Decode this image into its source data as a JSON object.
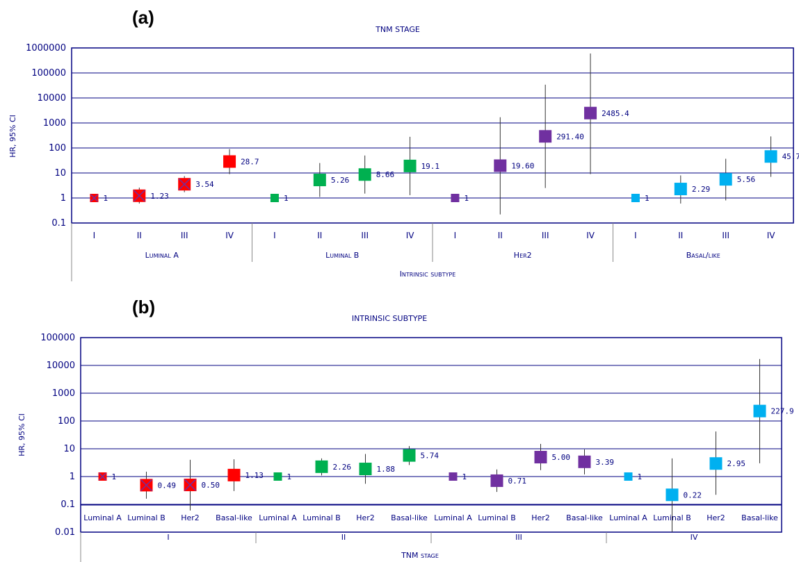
{
  "chart_data": [
    {
      "type": "scatter",
      "panel": "(a)",
      "title": "TNM STAGE",
      "ylabel": "HR, 95% CI",
      "xlabel": "Intrinsic subtype",
      "yscale": "log",
      "ylim": [
        0.1,
        1000000
      ],
      "yticks": [
        "0.1",
        "1",
        "10",
        "100",
        "1000",
        "10000",
        "100000",
        "1000000"
      ],
      "grid": true,
      "colors": {
        "Luminal A": "#ff0000",
        "Luminal B": "#00b050",
        "Her2": "#7030a0",
        "Basal/like": "#00b0f0"
      },
      "groups": [
        {
          "name": "Luminal A",
          "points": [
            {
              "x": "I",
              "value": 1,
              "label": "1",
              "lo": 1,
              "hi": 1,
              "marker": "x"
            },
            {
              "x": "II",
              "value": 1.23,
              "label": "1.23",
              "lo": 0.6,
              "hi": 2.6,
              "marker": "x"
            },
            {
              "x": "III",
              "value": 3.54,
              "label": "3.54",
              "lo": 1.7,
              "hi": 7.5,
              "marker": "x"
            },
            {
              "x": "IV",
              "value": 28.7,
              "label": "28.7",
              "lo": 9,
              "hi": 90,
              "marker": "square"
            }
          ]
        },
        {
          "name": "Luminal B",
          "points": [
            {
              "x": "I",
              "value": 1,
              "label": "1",
              "lo": 1,
              "hi": 1,
              "marker": "square"
            },
            {
              "x": "II",
              "value": 5.26,
              "label": "5.26",
              "lo": 1.1,
              "hi": 25,
              "marker": "square"
            },
            {
              "x": "III",
              "value": 8.66,
              "label": "8.66",
              "lo": 1.5,
              "hi": 50,
              "marker": "square"
            },
            {
              "x": "IV",
              "value": 19.1,
              "label": "19.1",
              "lo": 1.3,
              "hi": 280,
              "marker": "square"
            }
          ]
        },
        {
          "name": "Her2",
          "points": [
            {
              "x": "I",
              "value": 1,
              "label": "1",
              "lo": 1,
              "hi": 1,
              "marker": "square"
            },
            {
              "x": "II",
              "value": 19.6,
              "label": "19.60",
              "lo": 0.22,
              "hi": 1700,
              "marker": "square"
            },
            {
              "x": "III",
              "value": 291.4,
              "label": "291.40",
              "lo": 2.5,
              "hi": 34000,
              "marker": "square"
            },
            {
              "x": "IV",
              "value": 2485.4,
              "label": "2485.4",
              "lo": 9,
              "hi": 600000,
              "marker": "square"
            }
          ]
        },
        {
          "name": "Basal/like",
          "points": [
            {
              "x": "I",
              "value": 1,
              "label": "1",
              "lo": 1,
              "hi": 1,
              "marker": "square"
            },
            {
              "x": "II",
              "value": 2.29,
              "label": "2.29",
              "lo": 0.6,
              "hi": 8,
              "marker": "square"
            },
            {
              "x": "III",
              "value": 5.56,
              "label": "5.56",
              "lo": 0.8,
              "hi": 37,
              "marker": "square"
            },
            {
              "x": "IV",
              "value": 45.7,
              "label": "45.7",
              "lo": 7,
              "hi": 290,
              "marker": "square"
            }
          ]
        }
      ]
    },
    {
      "type": "scatter",
      "panel": "(b)",
      "title": "INTRINSIC SUBTYPE",
      "ylabel": "HR, 95% CI",
      "xlabel": "TNM stage",
      "yscale": "log",
      "ylim": [
        0.01,
        100000
      ],
      "yticks": [
        "0.01",
        "0.1",
        "1",
        "10",
        "100",
        "1000",
        "10000",
        "100000"
      ],
      "grid": true,
      "colors": {
        "Luminal A": "#ff0000",
        "Luminal B": "#00b050",
        "Her2": "#7030a0",
        "Basal/like": "#00b0f0"
      },
      "groups": [
        {
          "name": "I",
          "color": "#ff0000",
          "points": [
            {
              "x": "Luminal A",
              "value": 1,
              "label": "1",
              "lo": 1,
              "hi": 1,
              "marker": "x"
            },
            {
              "x": "Luminal B",
              "value": 0.49,
              "label": "0.49",
              "lo": 0.16,
              "hi": 1.5,
              "marker": "x"
            },
            {
              "x": "Her2",
              "value": 0.5,
              "label": "0.50",
              "lo": 0.06,
              "hi": 4,
              "marker": "x"
            },
            {
              "x": "Basal-like",
              "value": 1.13,
              "label": "1.13",
              "lo": 0.3,
              "hi": 4.2,
              "marker": "square"
            }
          ]
        },
        {
          "name": "II",
          "color": "#00b050",
          "points": [
            {
              "x": "Luminal A",
              "value": 1,
              "label": "1",
              "lo": 1,
              "hi": 1,
              "marker": "square"
            },
            {
              "x": "Luminal B",
              "value": 2.26,
              "label": "2.26",
              "lo": 1.1,
              "hi": 4.5,
              "marker": "square"
            },
            {
              "x": "Her2",
              "value": 1.88,
              "label": "1.88",
              "lo": 0.55,
              "hi": 6.5,
              "marker": "square"
            },
            {
              "x": "Basal-like",
              "value": 5.74,
              "label": "5.74",
              "lo": 2.6,
              "hi": 12.5,
              "marker": "square"
            }
          ]
        },
        {
          "name": "III",
          "color": "#7030a0",
          "points": [
            {
              "x": "Luminal A",
              "value": 1,
              "label": "1",
              "lo": 1,
              "hi": 1,
              "marker": "square"
            },
            {
              "x": "Luminal B",
              "value": 0.71,
              "label": "0.71",
              "lo": 0.28,
              "hi": 1.8,
              "marker": "square"
            },
            {
              "x": "Her2",
              "value": 5.0,
              "label": "5.00",
              "lo": 1.7,
              "hi": 15,
              "marker": "square"
            },
            {
              "x": "Basal-like",
              "value": 3.39,
              "label": "3.39",
              "lo": 1.2,
              "hi": 9.5,
              "marker": "square"
            }
          ]
        },
        {
          "name": "IV",
          "color": "#00b0f0",
          "points": [
            {
              "x": "Luminal A",
              "value": 1,
              "label": "1",
              "lo": 1,
              "hi": 1,
              "marker": "square"
            },
            {
              "x": "Luminal B",
              "value": 0.22,
              "label": "0.22",
              "lo": 0.01,
              "hi": 4.5,
              "marker": "square"
            },
            {
              "x": "Her2",
              "value": 2.95,
              "label": "2.95",
              "lo": 0.22,
              "hi": 42,
              "marker": "square"
            },
            {
              "x": "Basal-like",
              "value": 227.9,
              "label": "227.9",
              "lo": 3,
              "hi": 17000,
              "marker": "square"
            }
          ]
        }
      ]
    }
  ]
}
